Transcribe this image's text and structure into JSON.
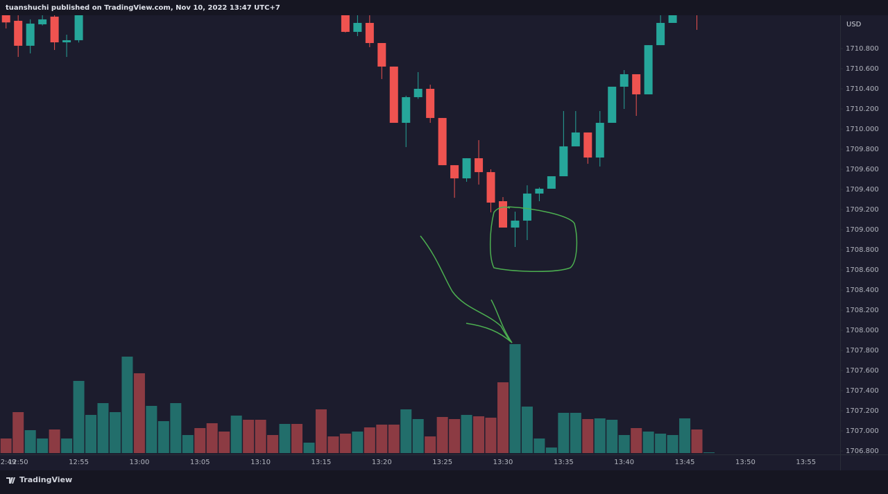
{
  "header": "tuanshuchi published on TradingView.com, Nov 10, 2022 13:47 UTC+7",
  "footer": "TradingView",
  "chart_data": {
    "type": "candlestick",
    "currency": "USD",
    "categories": [
      "12:49",
      "12:50",
      null,
      null,
      null,
      null,
      "12:55",
      null,
      null,
      null,
      null,
      "13:00",
      null,
      null,
      null,
      null,
      "13:05",
      null,
      null,
      null,
      null,
      "13:10",
      null,
      null,
      null,
      null,
      "13:15",
      null,
      null,
      null,
      null,
      "13:20",
      null,
      null,
      null,
      null,
      "13:25",
      null,
      null,
      null,
      null,
      "13:30",
      null,
      null,
      null,
      null,
      "13:35",
      null,
      null,
      null,
      null,
      "13:40",
      null,
      null,
      null,
      null,
      "13:45",
      null,
      null,
      null,
      null,
      "13:50",
      null,
      null,
      null,
      null,
      "13:55",
      null,
      null
    ],
    "open": [
      1711.15,
      1711.076,
      1710.828,
      1711.041,
      1711.117,
      1710.862,
      1710.883,
      null,
      null,
      null,
      null,
      null,
      null,
      null,
      null,
      null,
      null,
      null,
      null,
      null,
      null,
      null,
      null,
      null,
      null,
      null,
      null,
      null,
      1711.2,
      1710.966,
      1711.055,
      1710.855,
      1710.621,
      1710.062,
      1710.317,
      1710.4,
      1710.11,
      1709.641,
      1709.51,
      1709.71,
      1709.572,
      1709.283,
      1709.021,
      1709.09,
      1709.359,
      1709.407,
      1709.531,
      1709.828,
      1709.966,
      1709.717,
      1710.062,
      1710.421,
      1710.545,
      1710.345,
      1710.834,
      1711.055,
      null,
      1711.3,
      null,
      null,
      null,
      null,
      null,
      null,
      null,
      null,
      null,
      null,
      null
    ],
    "high": [
      1711.2,
      1711.2,
      1711.09,
      1711.2,
      1711.2,
      1710.938,
      1711.25,
      null,
      null,
      null,
      null,
      null,
      null,
      null,
      null,
      null,
      null,
      null,
      null,
      null,
      null,
      null,
      null,
      null,
      null,
      null,
      null,
      null,
      1711.3,
      1711.2,
      1711.2,
      1710.855,
      1710.621,
      1710.331,
      1710.566,
      1710.441,
      1710.11,
      1709.641,
      1709.71,
      1709.89,
      1709.6,
      1709.324,
      1709.179,
      1709.441,
      1709.42,
      1709.531,
      1710.179,
      1710.179,
      1709.966,
      1710.179,
      1710.421,
      1710.586,
      1710.545,
      1710.834,
      1711.2,
      1711.3,
      null,
      1711.35,
      null,
      null,
      null,
      null,
      null,
      null,
      null,
      null,
      null,
      null,
      null
    ],
    "low": [
      1711.0,
      1710.717,
      1710.752,
      1711.03,
      1710.786,
      1710.717,
      1710.86,
      null,
      null,
      null,
      null,
      null,
      null,
      null,
      null,
      null,
      null,
      null,
      null,
      null,
      null,
      null,
      null,
      null,
      null,
      null,
      null,
      null,
      1710.96,
      1710.924,
      1710.814,
      1710.497,
      1710.062,
      1709.821,
      1710.3,
      1710.062,
      1709.641,
      1709.317,
      1709.476,
      1709.448,
      1709.172,
      1709.021,
      1708.828,
      1708.897,
      1709.283,
      1709.407,
      1709.531,
      1709.828,
      1709.655,
      1709.628,
      1710.062,
      1710.2,
      1710.131,
      1710.345,
      1710.834,
      1711.055,
      null,
      1710.986,
      null,
      null,
      null,
      null,
      null,
      null,
      null,
      null,
      null,
      null,
      null
    ],
    "close": [
      1711.06,
      1710.828,
      1711.048,
      1711.09,
      1710.862,
      1710.883,
      1711.2,
      null,
      null,
      null,
      null,
      null,
      null,
      null,
      null,
      null,
      null,
      null,
      null,
      null,
      null,
      null,
      null,
      null,
      null,
      null,
      null,
      null,
      1710.966,
      1711.055,
      1710.855,
      1710.621,
      1710.062,
      1710.317,
      1710.4,
      1710.11,
      1709.641,
      1709.51,
      1709.71,
      1709.572,
      1709.269,
      1709.021,
      1709.09,
      1709.359,
      1709.407,
      1709.531,
      1709.828,
      1709.966,
      1709.717,
      1710.062,
      1710.421,
      1710.545,
      1710.345,
      1710.834,
      1711.055,
      1711.2,
      null,
      1711.2,
      null,
      null,
      null,
      null,
      null,
      null,
      null,
      null,
      null,
      null,
      null
    ],
    "volume": [
      21,
      59,
      33,
      21,
      34,
      21,
      104,
      55,
      72,
      59,
      139,
      115,
      68,
      46,
      72,
      26,
      36,
      43,
      31,
      54,
      48,
      48,
      26,
      42,
      42,
      15,
      63,
      24,
      28,
      31,
      37,
      41,
      41,
      63,
      49,
      24,
      52,
      49,
      55,
      53,
      51,
      102,
      157,
      67,
      21,
      8,
      58,
      58,
      49,
      50,
      48,
      26,
      36,
      31,
      28,
      26,
      50,
      34,
      1,
      null,
      null,
      null,
      null,
      null,
      null,
      null,
      null,
      null,
      null
    ],
    "volume_colors": [
      "#8c3b43",
      "#8c3b43",
      "#226e6b",
      "#226e6b",
      "#8c3b43",
      "#226e6b",
      "#226e6b",
      "#226e6b",
      "#226e6b",
      "#226e6b",
      "#226e6b",
      "#8c3b43",
      "#226e6b",
      "#226e6b",
      "#226e6b",
      "#226e6b",
      "#8c3b43",
      "#8c3b43",
      "#8c3b43",
      "#226e6b",
      "#8c3b43",
      "#8c3b43",
      "#8c3b43",
      "#226e6b",
      "#8c3b43",
      "#226e6b",
      "#8c3b43",
      "#8c3b43",
      "#8c3b43",
      "#226e6b",
      "#8c3b43",
      "#8c3b43",
      "#8c3b43",
      "#226e6b",
      "#226e6b",
      "#8c3b43",
      "#8c3b43",
      "#8c3b43",
      "#226e6b",
      "#8c3b43",
      "#8c3b43",
      "#8c3b43",
      "#226e6b",
      "#226e6b",
      "#226e6b",
      "#226e6b",
      "#226e6b",
      "#226e6b",
      "#8c3b43",
      "#226e6b",
      "#226e6b",
      "#226e6b",
      "#8c3b43",
      "#226e6b",
      "#226e6b",
      "#226e6b",
      "#226e6b",
      "#8c3b43",
      "#226e6b",
      null,
      null,
      null,
      null,
      null,
      null,
      null,
      null,
      null,
      null
    ],
    "up_color": "#26a69a",
    "down_color": "#ef5350",
    "ylim": [
      1706.766,
      1711.131
    ],
    "volume_ylim": [
      0,
      200
    ],
    "yticks": [
      {
        "value": 1706.8,
        "label": "1706.800"
      },
      {
        "value": 1707.0,
        "label": "1707.000"
      },
      {
        "value": 1707.2,
        "label": "1707.200"
      },
      {
        "value": 1707.4,
        "label": "1707.400"
      },
      {
        "value": 1707.6,
        "label": "1707.600"
      },
      {
        "value": 1707.8,
        "label": "1707.800"
      },
      {
        "value": 1708.0,
        "label": "1708.000"
      },
      {
        "value": 1708.2,
        "label": "1708.200"
      },
      {
        "value": 1708.4,
        "label": "1708.400"
      },
      {
        "value": 1708.6,
        "label": "1708.600"
      },
      {
        "value": 1708.8,
        "label": "1708.800"
      },
      {
        "value": 1709.0,
        "label": "1709.000"
      },
      {
        "value": 1709.2,
        "label": "1709.200"
      },
      {
        "value": 1709.4,
        "label": "1709.400"
      },
      {
        "value": 1709.6,
        "label": "1709.600"
      },
      {
        "value": 1709.8,
        "label": "1709.800"
      },
      {
        "value": 1710.0,
        "label": "1710.000"
      },
      {
        "value": 1710.2,
        "label": "1710.200"
      },
      {
        "value": 1710.4,
        "label": "1710.400"
      },
      {
        "value": 1710.6,
        "label": "1710.600"
      },
      {
        "value": 1710.8,
        "label": "1710.800"
      }
    ],
    "grid": false
  }
}
